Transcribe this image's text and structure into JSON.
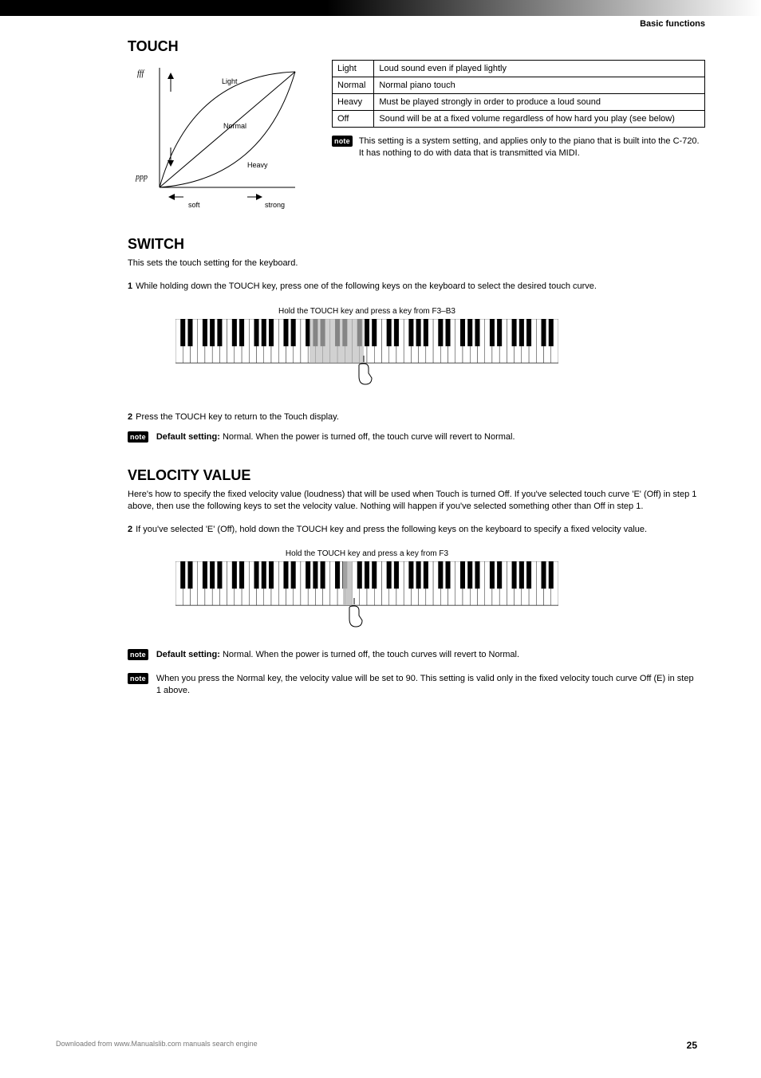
{
  "header_right": "Basic functions",
  "section_touch": {
    "title": "TOUCH",
    "chart": {
      "y_top": "fff",
      "y_bottom": "ppp",
      "x_left": "soft",
      "x_right": "strong",
      "curve_labels": {
        "upper": "Light",
        "mid": "Normal",
        "lower": "Heavy"
      }
    },
    "table": {
      "rows": [
        [
          "Light",
          "Loud sound even if played lightly"
        ],
        [
          "Normal",
          "Normal piano touch"
        ],
        [
          "Heavy",
          "Must be played strongly in order to produce a loud sound"
        ],
        [
          "Off",
          "Sound will be at a fixed volume regardless of how hard you play (see below)"
        ]
      ]
    },
    "note": "This setting is a system setting, and applies only to the piano that is built into the C-720. It has nothing to do with data that is transmitted via MIDI."
  },
  "section_switch": {
    "title": "SWITCH",
    "intro": "This sets the touch setting for the keyboard.",
    "s1": {
      "num": "1",
      "text": "While holding down the TOUCH key, press one of the following keys on the keyboard to select the desired touch curve."
    },
    "kb_caption": "Hold the TOUCH key and press a key from F3–B3",
    "s2": {
      "num": "2",
      "text": "Press the TOUCH key to return to the Touch display."
    },
    "note_label": "Default setting:",
    "note_value": "Normal. When the power is turned off, the touch curve will revert to Normal."
  },
  "section_velocity": {
    "title": "VELOCITY VALUE",
    "intro": "Here's how to specify the fixed velocity value (loudness) that will be used when Touch is turned Off. If you've selected touch curve 'E' (Off) in step 1 above, then use the following keys to set the velocity value. Nothing will happen if you've selected something other than Off in step 1.",
    "s2": {
      "num": "2",
      "text": "If you've selected 'E' (Off), hold down the TOUCH key and press the following keys on the keyboard to specify a fixed velocity value."
    },
    "kb_caption": "Hold the TOUCH key and press a key from F3",
    "note1_label": "Default setting:",
    "note1_value": "Normal. When the power is turned off, the touch curves will revert to Normal.",
    "note2_text": "When you press the Normal key, the velocity value will be set to 90. This setting is valid only in the fixed velocity touch curve Off (E) in step 1 above."
  },
  "footer": {
    "line": "Downloaded from www.Manualslib.com manuals search engine",
    "pageno": "25"
  }
}
